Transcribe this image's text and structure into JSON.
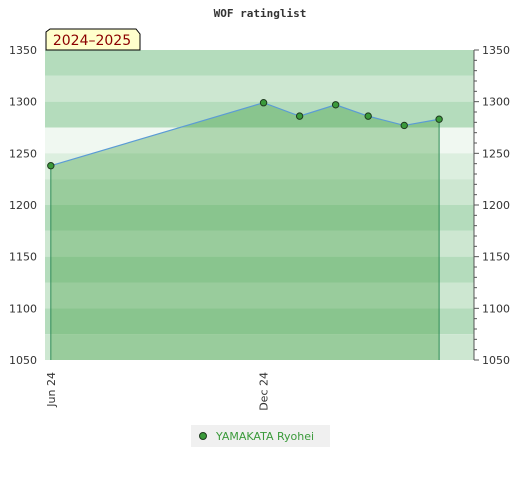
{
  "chart_data": {
    "type": "area",
    "title": "WOF ratinglist",
    "badge": "2024–2025",
    "ylim": [
      1050,
      1350
    ],
    "yticks": [
      1050,
      1100,
      1150,
      1200,
      1250,
      1300,
      1350
    ],
    "xticks": [
      {
        "label": "Jun 24",
        "date": "2024-06-01"
      },
      {
        "label": "Dec 24",
        "date": "2024-12-01"
      }
    ],
    "xrange": [
      "2024-05-27",
      "2025-05-31"
    ],
    "series": [
      {
        "name": "YAMAKATA Ryohei",
        "color": "#3a9a3a",
        "points": [
          {
            "date": "2024-06-01",
            "value": 1238
          },
          {
            "date": "2024-12-01",
            "value": 1299
          },
          {
            "date": "2025-01-01",
            "value": 1286
          },
          {
            "date": "2025-02-01",
            "value": 1297
          },
          {
            "date": "2025-03-01",
            "value": 1286
          },
          {
            "date": "2025-04-01",
            "value": 1277
          },
          {
            "date": "2025-05-01",
            "value": 1283
          }
        ]
      }
    ],
    "grid": false,
    "legend_position": "bottom-center"
  }
}
